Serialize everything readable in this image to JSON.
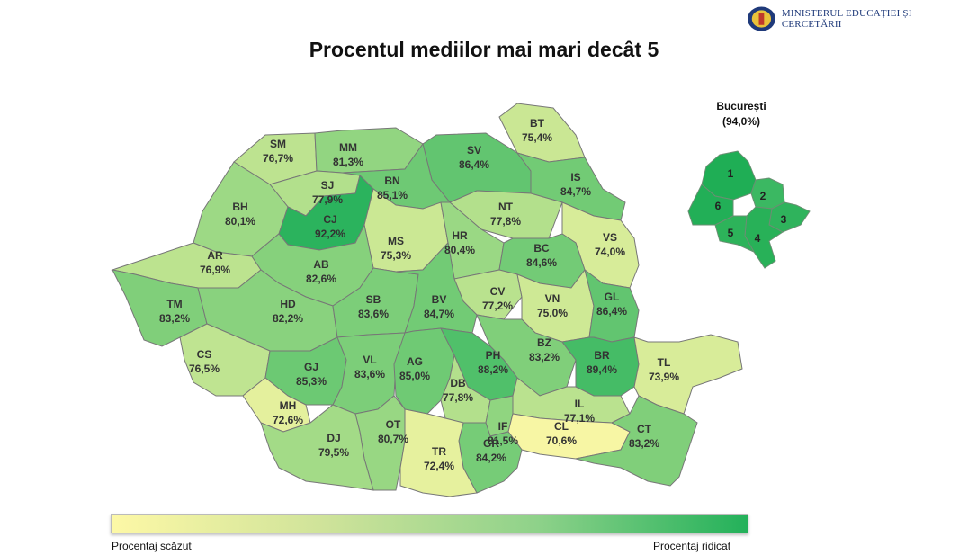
{
  "header": {
    "ministry": "MINISTERUL EDUCAȚIEI ȘI CERCETĂRII",
    "title": "Procentul mediilor mai mari decât 5"
  },
  "colors": {
    "low": "#fdf8a6",
    "high": "#23b15a",
    "border": "#777777"
  },
  "counties": [
    {
      "code": "SM",
      "value": "76,7%"
    },
    {
      "code": "MM",
      "value": "81,3%"
    },
    {
      "code": "BT",
      "value": "75,4%"
    },
    {
      "code": "SV",
      "value": "86,4%"
    },
    {
      "code": "IS",
      "value": "84,7%"
    },
    {
      "code": "BN",
      "value": "85,1%"
    },
    {
      "code": "SJ",
      "value": "77,9%"
    },
    {
      "code": "BH",
      "value": "80,1%"
    },
    {
      "code": "CJ",
      "value": "92,2%"
    },
    {
      "code": "NT",
      "value": "77,8%"
    },
    {
      "code": "MS",
      "value": "75,3%"
    },
    {
      "code": "HR",
      "value": "80,4%"
    },
    {
      "code": "VS",
      "value": "74,0%"
    },
    {
      "code": "AR",
      "value": "76,9%"
    },
    {
      "code": "AB",
      "value": "82,6%"
    },
    {
      "code": "BC",
      "value": "84,6%"
    },
    {
      "code": "CV",
      "value": "77,2%"
    },
    {
      "code": "TM",
      "value": "83,2%"
    },
    {
      "code": "HD",
      "value": "82,2%"
    },
    {
      "code": "SB",
      "value": "83,6%"
    },
    {
      "code": "BV",
      "value": "84,7%"
    },
    {
      "code": "VN",
      "value": "75,0%"
    },
    {
      "code": "GL",
      "value": "86,4%"
    },
    {
      "code": "CS",
      "value": "76,5%"
    },
    {
      "code": "BZ",
      "value": "83,2%"
    },
    {
      "code": "GJ",
      "value": "85,3%"
    },
    {
      "code": "VL",
      "value": "83,6%"
    },
    {
      "code": "AG",
      "value": "85,0%"
    },
    {
      "code": "PH",
      "value": "88,2%"
    },
    {
      "code": "BR",
      "value": "89,4%"
    },
    {
      "code": "TL",
      "value": "73,9%"
    },
    {
      "code": "DB",
      "value": "77,8%"
    },
    {
      "code": "MH",
      "value": "72,6%"
    },
    {
      "code": "IL",
      "value": "77,1%"
    },
    {
      "code": "IF",
      "value": "81,5%"
    },
    {
      "code": "OT",
      "value": "80,7%"
    },
    {
      "code": "DJ",
      "value": "79,5%"
    },
    {
      "code": "CL",
      "value": "70,6%"
    },
    {
      "code": "CT",
      "value": "83,2%"
    },
    {
      "code": "GR",
      "value": "84,2%"
    },
    {
      "code": "TR",
      "value": "72,4%"
    }
  ],
  "bucharest": {
    "name": "București",
    "value": "(94,0%)",
    "sectors": [
      {
        "label": "1",
        "color": "#1fae55"
      },
      {
        "label": "2",
        "color": "#3bb862"
      },
      {
        "label": "3",
        "color": "#2fb35c"
      },
      {
        "label": "4",
        "color": "#28b158"
      },
      {
        "label": "5",
        "color": "#2db35a"
      },
      {
        "label": "6",
        "color": "#22af57"
      }
    ]
  },
  "legend": {
    "low": "Procentaj scăzut",
    "high": "Procentaj ridicat"
  }
}
